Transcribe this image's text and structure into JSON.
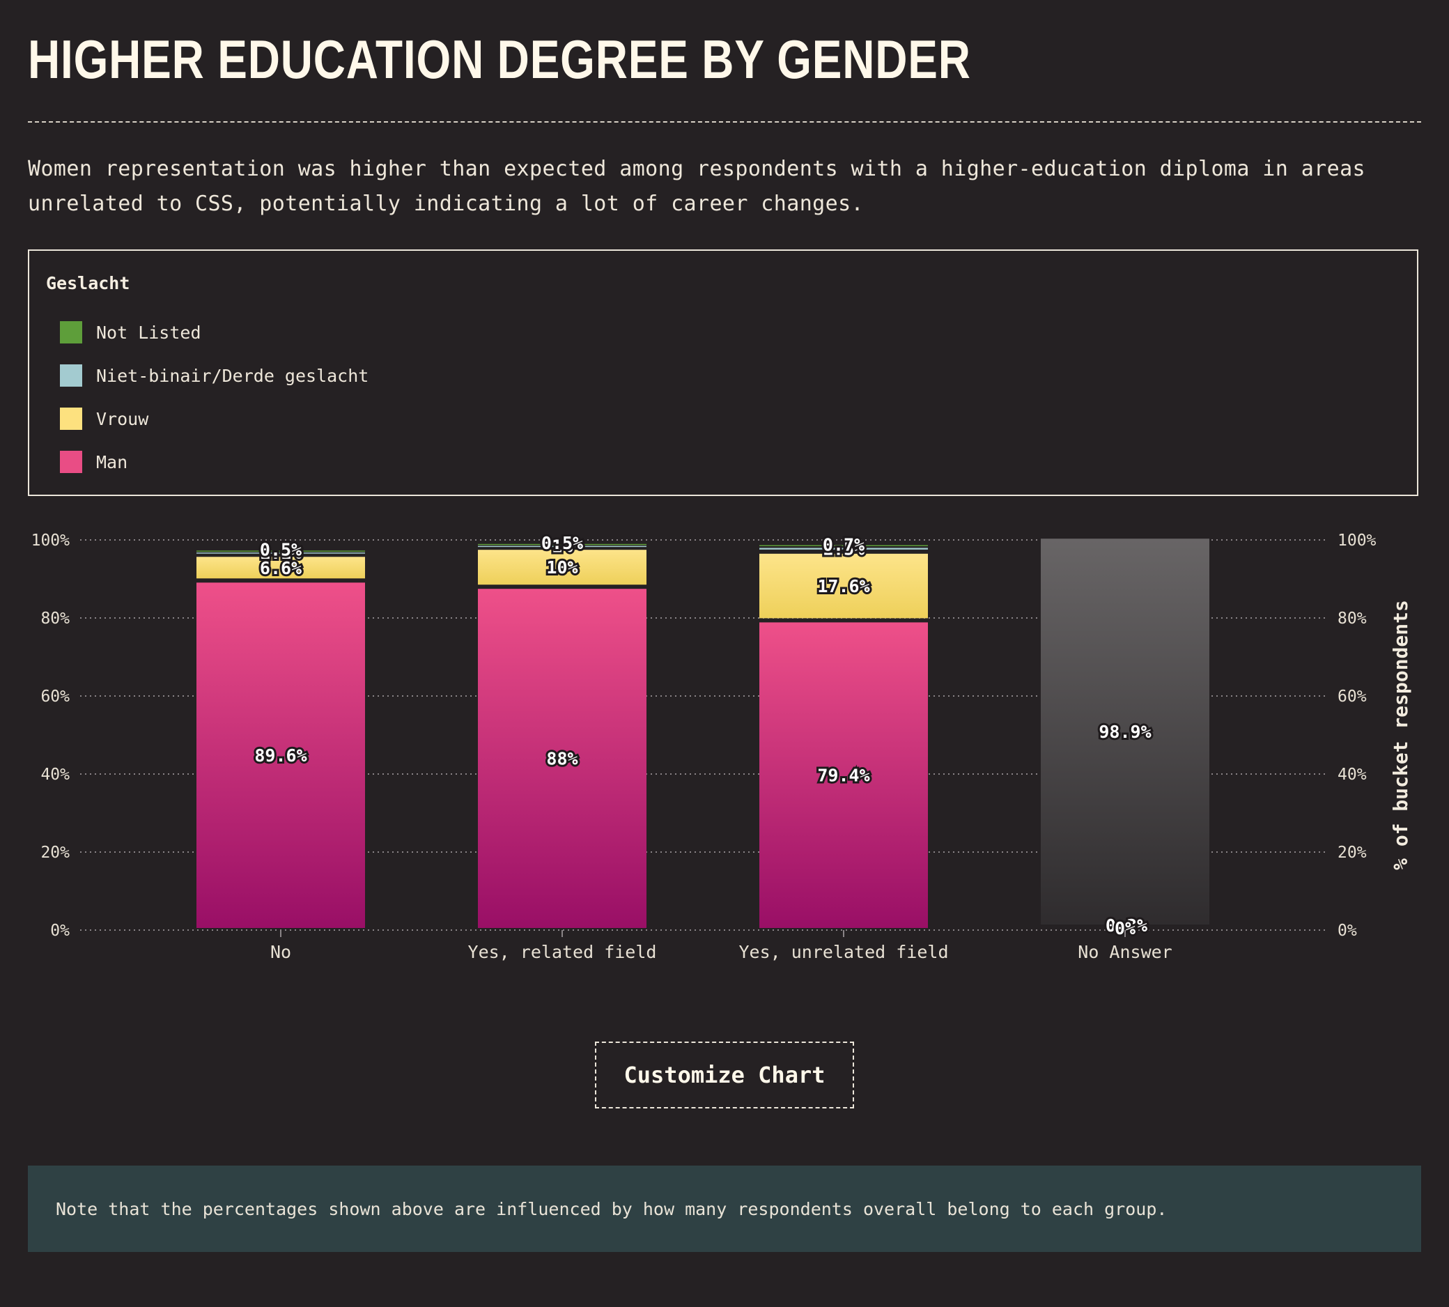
{
  "page": {
    "title": "HIGHER EDUCATION DEGREE BY GENDER",
    "description": "Women representation was higher than expected among respondents with a higher-education diploma in areas unrelated to CSS, potentially indicating a lot of career changes.",
    "customize_button": "Customize Chart",
    "note": "Note that the percentages shown above are influenced by how many respondents overall belong to each group."
  },
  "legend": {
    "title": "Geslacht",
    "items": [
      {
        "label": "Not Listed",
        "color": "#5e9e3a"
      },
      {
        "label": "Niet-binair/Derde geslacht",
        "color": "#a3cbd0"
      },
      {
        "label": "Vrouw",
        "color": "#fde17f"
      },
      {
        "label": "Man",
        "color": "#e94d85"
      }
    ]
  },
  "chart_data": {
    "type": "bar",
    "stacked": true,
    "categories": [
      "No",
      "Yes, related field",
      "Yes, unrelated field",
      "No Answer"
    ],
    "ylabel": "% of bucket respondents",
    "ylim": [
      0,
      100
    ],
    "yticks": [
      "0%",
      "20%",
      "40%",
      "60%",
      "80%",
      "100%"
    ],
    "grid": true,
    "series": [
      {
        "name": "Man",
        "color": "#e94d85",
        "values": [
          89.6,
          88,
          79.4,
          null
        ],
        "labels": [
          "89.6%",
          "88%",
          "79.4%",
          null
        ]
      },
      {
        "name": "Vrouw",
        "color": "#fde17f",
        "values": [
          6.6,
          10,
          17.6,
          null
        ],
        "labels": [
          "6.6%",
          "10%",
          "17.6%",
          null
        ]
      },
      {
        "name": "Niet-binair/Derde geslacht",
        "color": "#a3cbd0",
        "values": [
          1.1,
          1,
          1.5,
          null
        ],
        "labels": [
          "1.1%",
          "1%",
          "1.5%",
          null
        ]
      },
      {
        "name": "Not Listed",
        "color": "#5e9e3a",
        "values": [
          0.5,
          0.5,
          0.7,
          null
        ],
        "labels": [
          "0.5%",
          "0.5%",
          "0.7%",
          null
        ]
      }
    ],
    "no_answer": {
      "category": "No Answer",
      "value": 98.9,
      "label": "98.9%",
      "color": "#666364",
      "small_labels": [
        "0%",
        "0.3%"
      ]
    }
  }
}
